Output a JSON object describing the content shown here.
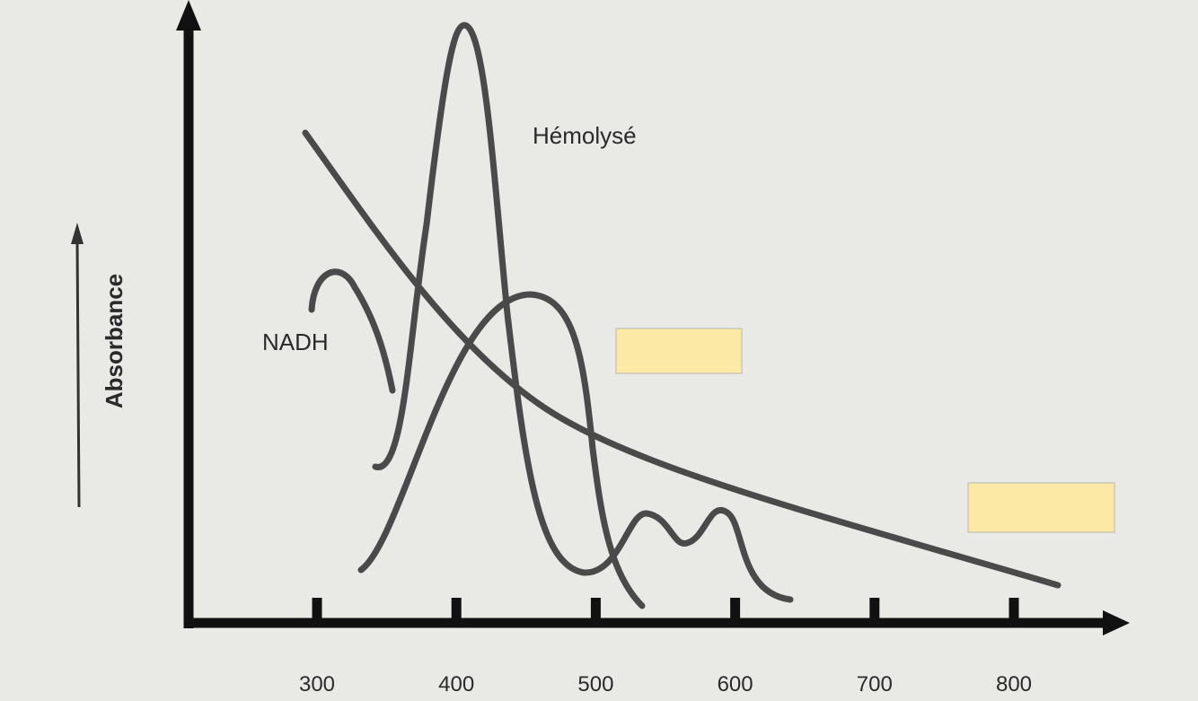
{
  "y_axis_label": "Absorbance",
  "x_axis": {
    "ticks": [
      300,
      400,
      500,
      600,
      700,
      800
    ]
  },
  "curve_labels": {
    "nadh": "NADH",
    "hemolyse": "Hémolysé"
  }
}
